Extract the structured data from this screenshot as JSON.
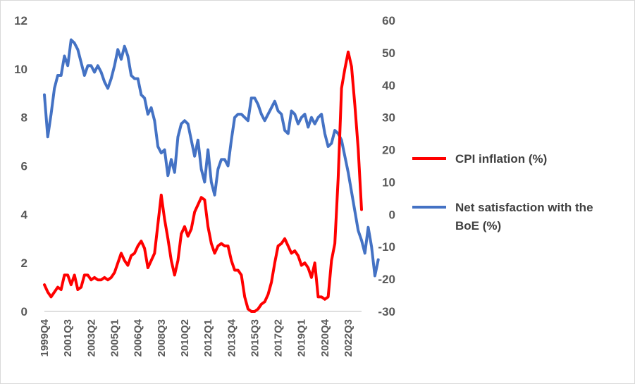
{
  "chart_data": {
    "type": "line",
    "title": "",
    "xlabel": "",
    "ylabel_left": "",
    "ylabel_right": "",
    "grid": false,
    "legend_position": "right",
    "x_tick_labels": [
      "1999Q4",
      "2001Q3",
      "2003Q2",
      "2005Q1",
      "2006Q4",
      "2008Q3",
      "2010Q2",
      "2012Q1",
      "2013Q4",
      "2015Q3",
      "2017Q2",
      "2019Q1",
      "2020Q4",
      "2022Q3"
    ],
    "y_left": {
      "min": 0,
      "max": 12,
      "ticks": [
        "0",
        "2",
        "4",
        "6",
        "8",
        "10",
        "12"
      ]
    },
    "y_right": {
      "min": -30,
      "max": 60,
      "ticks": [
        "-30",
        "-20",
        "-10",
        "0",
        "10",
        "20",
        "30",
        "40",
        "50",
        "60"
      ]
    },
    "series": [
      {
        "name": "CPI inflation (%)",
        "axis": "left",
        "color": "#ff0000",
        "x_start": "1999Q4",
        "values": [
          1.1,
          0.8,
          0.6,
          0.8,
          1.0,
          0.9,
          1.5,
          1.5,
          1.1,
          1.5,
          0.9,
          1.0,
          1.5,
          1.5,
          1.3,
          1.4,
          1.3,
          1.3,
          1.4,
          1.3,
          1.4,
          1.6,
          2.0,
          2.4,
          2.1,
          1.9,
          2.3,
          2.4,
          2.7,
          2.9,
          2.6,
          1.8,
          2.1,
          2.4,
          3.6,
          4.8,
          3.8,
          3.0,
          2.1,
          1.5,
          2.1,
          3.2,
          3.5,
          3.1,
          3.4,
          4.1,
          4.4,
          4.7,
          4.6,
          3.5,
          2.8,
          2.4,
          2.7,
          2.8,
          2.7,
          2.7,
          2.1,
          1.7,
          1.7,
          1.5,
          0.6,
          0.1,
          0.0,
          0.0,
          0.1,
          0.3,
          0.4,
          0.7,
          1.2,
          2.0,
          2.7,
          2.8,
          3.0,
          2.7,
          2.4,
          2.5,
          2.3,
          1.9,
          2.0,
          1.8,
          1.4,
          2.0,
          0.6,
          0.6,
          0.5,
          0.6,
          2.1,
          2.8,
          5.5,
          9.2,
          10.0,
          10.7,
          10.1,
          8.5,
          6.7,
          4.2
        ]
      },
      {
        "name": "Net satisfaction with the BoE (%)",
        "axis": "right",
        "color": "#4472c4",
        "x_start": "1999Q4",
        "values": [
          37,
          24,
          31,
          39,
          43,
          43,
          49,
          46,
          54,
          53,
          51,
          47,
          43,
          46,
          46,
          44,
          46,
          44,
          41,
          39,
          42,
          46,
          51,
          48,
          52,
          49,
          43,
          42,
          42,
          37,
          36,
          31,
          33,
          29,
          21,
          19,
          20,
          12,
          17,
          13,
          24,
          28,
          29,
          28,
          23,
          18,
          23,
          14,
          10,
          20,
          10,
          6,
          14,
          17,
          17,
          15,
          23,
          30,
          31,
          31,
          30,
          29,
          36,
          36,
          34,
          31,
          29,
          31,
          33,
          35,
          32,
          31,
          26,
          25,
          32,
          31,
          28,
          30,
          31,
          27,
          30,
          28,
          30,
          31,
          25,
          21,
          22,
          26,
          25,
          23,
          18,
          13,
          7,
          1,
          -5,
          -8,
          -12,
          -4,
          -10,
          -19,
          -14
        ]
      }
    ]
  }
}
